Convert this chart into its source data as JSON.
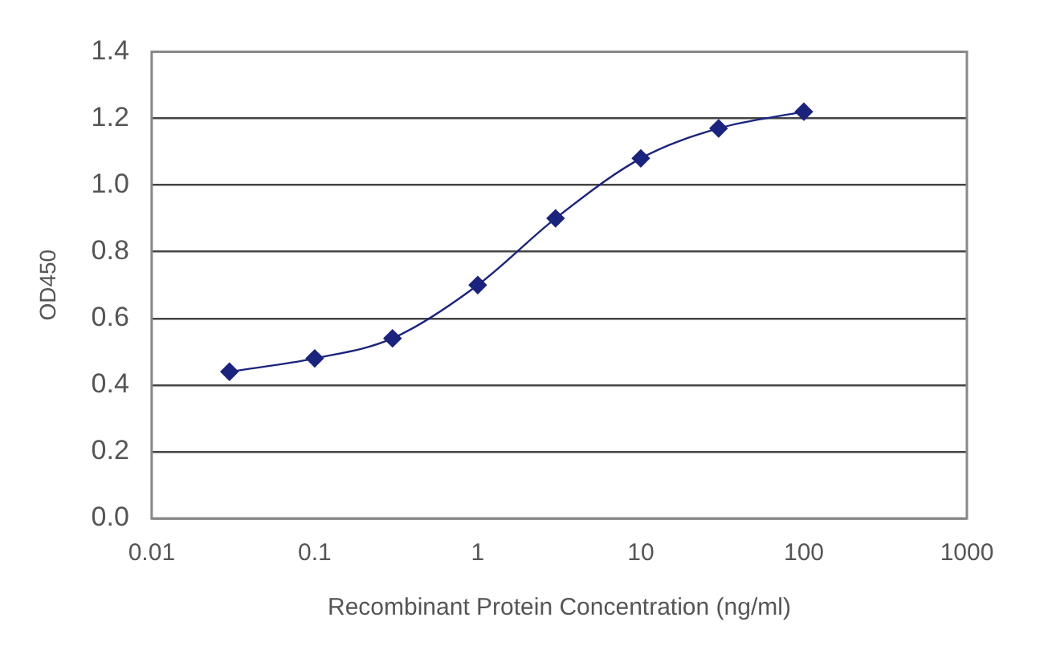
{
  "chart_data": {
    "type": "line",
    "xlabel": "Recombinant Protein Concentration (ng/ml)",
    "ylabel": "OD450",
    "x": [
      0.03,
      0.1,
      0.3,
      1,
      3,
      10,
      30,
      100
    ],
    "series": [
      {
        "color": "#1a237e",
        "values": [
          0.44,
          0.48,
          0.54,
          0.7,
          0.9,
          1.08,
          1.17,
          1.22
        ]
      }
    ],
    "log": "x",
    "xlim": [
      0.01,
      1000
    ],
    "xticks": [
      0.01,
      0.1,
      1,
      10,
      100,
      1000
    ],
    "ylim": [
      0,
      1.4
    ],
    "yticks": [
      {
        "value": 0,
        "label": "0.0"
      },
      {
        "value": 0.2,
        "label": "0.2"
      },
      {
        "value": 0.4,
        "label": "0.4"
      },
      {
        "value": 0.6,
        "label": "0.6"
      },
      {
        "value": 0.8,
        "label": "0.8"
      },
      {
        "value": 1.0,
        "label": "1.0"
      },
      {
        "value": 1.2,
        "label": "1.2"
      },
      {
        "value": 1.4,
        "label": "1.4"
      }
    ],
    "grid": "y",
    "legend": false,
    "marker": "diamond",
    "line_style": "solid"
  }
}
